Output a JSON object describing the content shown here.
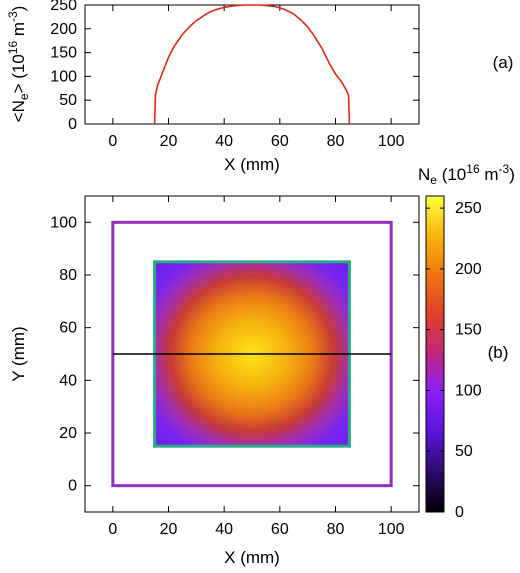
{
  "chart_data": [
    {
      "panel": "(a)",
      "type": "line",
      "xlabel": "X (mm)",
      "ylabel": "<N_e> (10^16 m^-3)",
      "ylabel_parts": {
        "open": "<N",
        "sub": "e",
        "mid": "> (10",
        "sup1": "16",
        "unit": " m",
        "sup2": "-3",
        "close": ")"
      },
      "xlim": [
        -10,
        110
      ],
      "ylim": [
        0,
        250
      ],
      "xticks": [
        "0",
        "20",
        "40",
        "60",
        "80",
        "100"
      ],
      "yticks": [
        "0",
        "50",
        "100",
        "150",
        "200",
        "250"
      ],
      "color": "#d62c12",
      "series": [
        {
          "x": [
            15,
            15.3,
            16,
            18,
            20,
            22,
            25,
            28,
            30,
            33,
            35,
            38,
            40,
            43,
            45,
            48,
            50,
            52,
            55,
            58,
            60,
            62,
            65,
            68,
            70,
            72,
            75,
            78,
            80,
            82,
            83,
            84,
            84.7,
            85
          ],
          "y": [
            0,
            60,
            80,
            110,
            140,
            163,
            188,
            207,
            217,
            229,
            236,
            242,
            245,
            248,
            249,
            250,
            250,
            250,
            249,
            247,
            244,
            240,
            231,
            216,
            204,
            188,
            160,
            125,
            105,
            90,
            80,
            70,
            60,
            0
          ]
        }
      ]
    },
    {
      "panel": "(b)",
      "type": "heatmap",
      "xlabel": "X (mm)",
      "ylabel": "Y (mm)",
      "xlim": [
        -10,
        110
      ],
      "ylim": [
        -10,
        110
      ],
      "xticks": [
        "0",
        "20",
        "40",
        "60",
        "80",
        "100"
      ],
      "yticks": [
        "0",
        "20",
        "40",
        "60",
        "80",
        "100"
      ],
      "colorbar": {
        "label_parts": {
          "base": "N",
          "sub": "e",
          "mid": " (10",
          "sup1": "16",
          "unit": " m",
          "sup2": "-3",
          "close": ")"
        },
        "range": [
          0,
          260
        ],
        "ticks": [
          "0",
          "50",
          "100",
          "150",
          "200",
          "250"
        ],
        "colormap": [
          "#000000",
          "#3b0a8f",
          "#8a1ef8",
          "#c2297e",
          "#e2541c",
          "#f39a0a",
          "#fde21a",
          "#ffff5a"
        ]
      },
      "plasma_region": {
        "x": [
          15,
          85
        ],
        "y": [
          15,
          85
        ],
        "peak": 250,
        "min": 60,
        "border_color": "#2aa88a"
      },
      "outer_box": {
        "x": [
          0,
          100
        ],
        "y": [
          0,
          100
        ],
        "color": "#8f2fbf"
      },
      "cut_line": {
        "y": 50,
        "x": [
          0,
          100
        ],
        "color": "#000000"
      }
    }
  ],
  "panel_labels": {
    "a": "(a)",
    "b": "(b)"
  }
}
